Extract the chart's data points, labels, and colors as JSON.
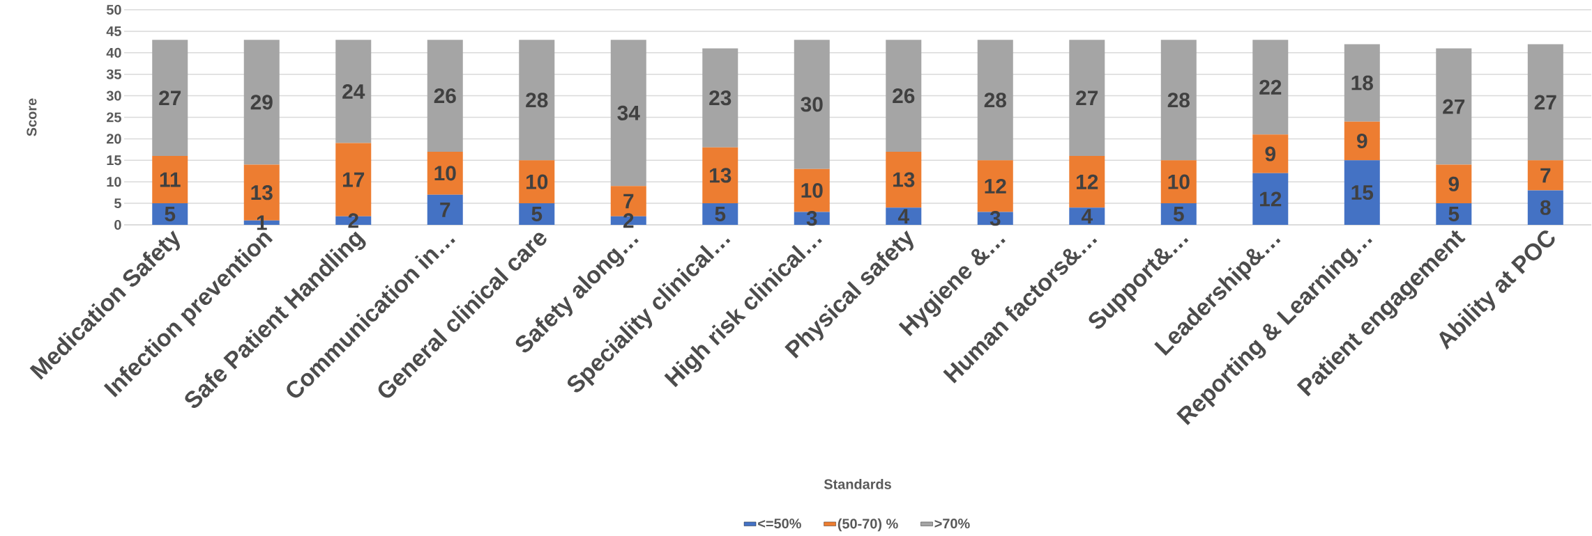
{
  "chart_data": {
    "type": "bar",
    "stacked": true,
    "xlabel": "Standards",
    "ylabel": "Score",
    "categories": [
      "Medication Safety",
      "Infection prevention",
      "Safe Patient Handling",
      "Communication in…",
      "General clinical care",
      "Safety along…",
      "Speciality clinical…",
      "High risk clinical…",
      "Physical safety",
      "Hygiene &…",
      "Human factors&…",
      "Support&…",
      "Leadership&…",
      "Reporting & Learning…",
      "Patient engagement",
      "Ability at POC"
    ],
    "series": [
      {
        "name": "<=50%",
        "color": "#4472c4",
        "values": [
          5,
          1,
          2,
          7,
          5,
          2,
          5,
          3,
          4,
          3,
          4,
          5,
          12,
          15,
          5,
          8
        ]
      },
      {
        "name": "(50-70) %",
        "color": "#ed7d31",
        "values": [
          11,
          13,
          17,
          10,
          10,
          7,
          13,
          10,
          13,
          12,
          12,
          10,
          9,
          9,
          9,
          7
        ]
      },
      {
        "name": ">70%",
        "color": "#a5a5a5",
        "values": [
          27,
          29,
          24,
          26,
          28,
          34,
          23,
          30,
          26,
          28,
          27,
          28,
          22,
          18,
          27,
          27
        ]
      }
    ],
    "ylim": [
      0,
      50
    ],
    "yticks": [
      0,
      5,
      10,
      15,
      20,
      25,
      30,
      35,
      40,
      45,
      50
    ],
    "grid": "y",
    "legend": "bottom",
    "data_labels": true
  }
}
